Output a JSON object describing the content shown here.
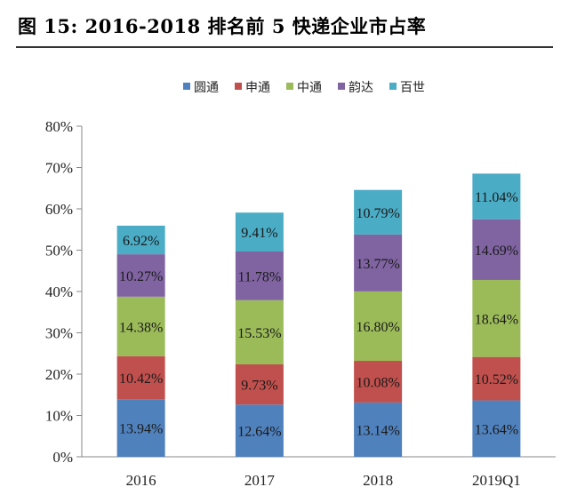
{
  "figure": {
    "title": "图 15: 2016-2018 排名前 5 快递企业市占率"
  },
  "chart_data": {
    "type": "bar",
    "stacked": true,
    "categories": [
      "2016",
      "2017",
      "2018",
      "2019Q1"
    ],
    "series": [
      {
        "name": "圆通",
        "color": "#4F81BD",
        "values": [
          13.94,
          12.64,
          13.14,
          13.64
        ],
        "labels": [
          "13.94%",
          "12.64%",
          "13.14%",
          "13.64%"
        ]
      },
      {
        "name": "申通",
        "color": "#C0504D",
        "values": [
          10.42,
          9.73,
          10.08,
          10.52
        ],
        "labels": [
          "10.42%",
          "9.73%",
          "10.08%",
          "10.52%"
        ]
      },
      {
        "name": "中通",
        "color": "#9BBB59",
        "values": [
          14.38,
          15.53,
          16.8,
          18.64
        ],
        "labels": [
          "14.38%",
          "15.53%",
          "16.80%",
          "18.64%"
        ]
      },
      {
        "name": "韵达",
        "color": "#8064A2",
        "values": [
          10.27,
          11.78,
          13.77,
          14.69
        ],
        "labels": [
          "10.27%",
          "11.78%",
          "13.77%",
          "14.69%"
        ]
      },
      {
        "name": "百世",
        "color": "#4BACC6",
        "values": [
          6.92,
          9.41,
          10.79,
          11.04
        ],
        "labels": [
          "6.92%",
          "9.41%",
          "10.79%",
          "11.04%"
        ]
      }
    ],
    "y_ticks": [
      "0%",
      "10%",
      "20%",
      "30%",
      "40%",
      "50%",
      "60%",
      "70%",
      "80%"
    ],
    "ylim": [
      0,
      80
    ],
    "legend_position": "top",
    "grid": false
  }
}
